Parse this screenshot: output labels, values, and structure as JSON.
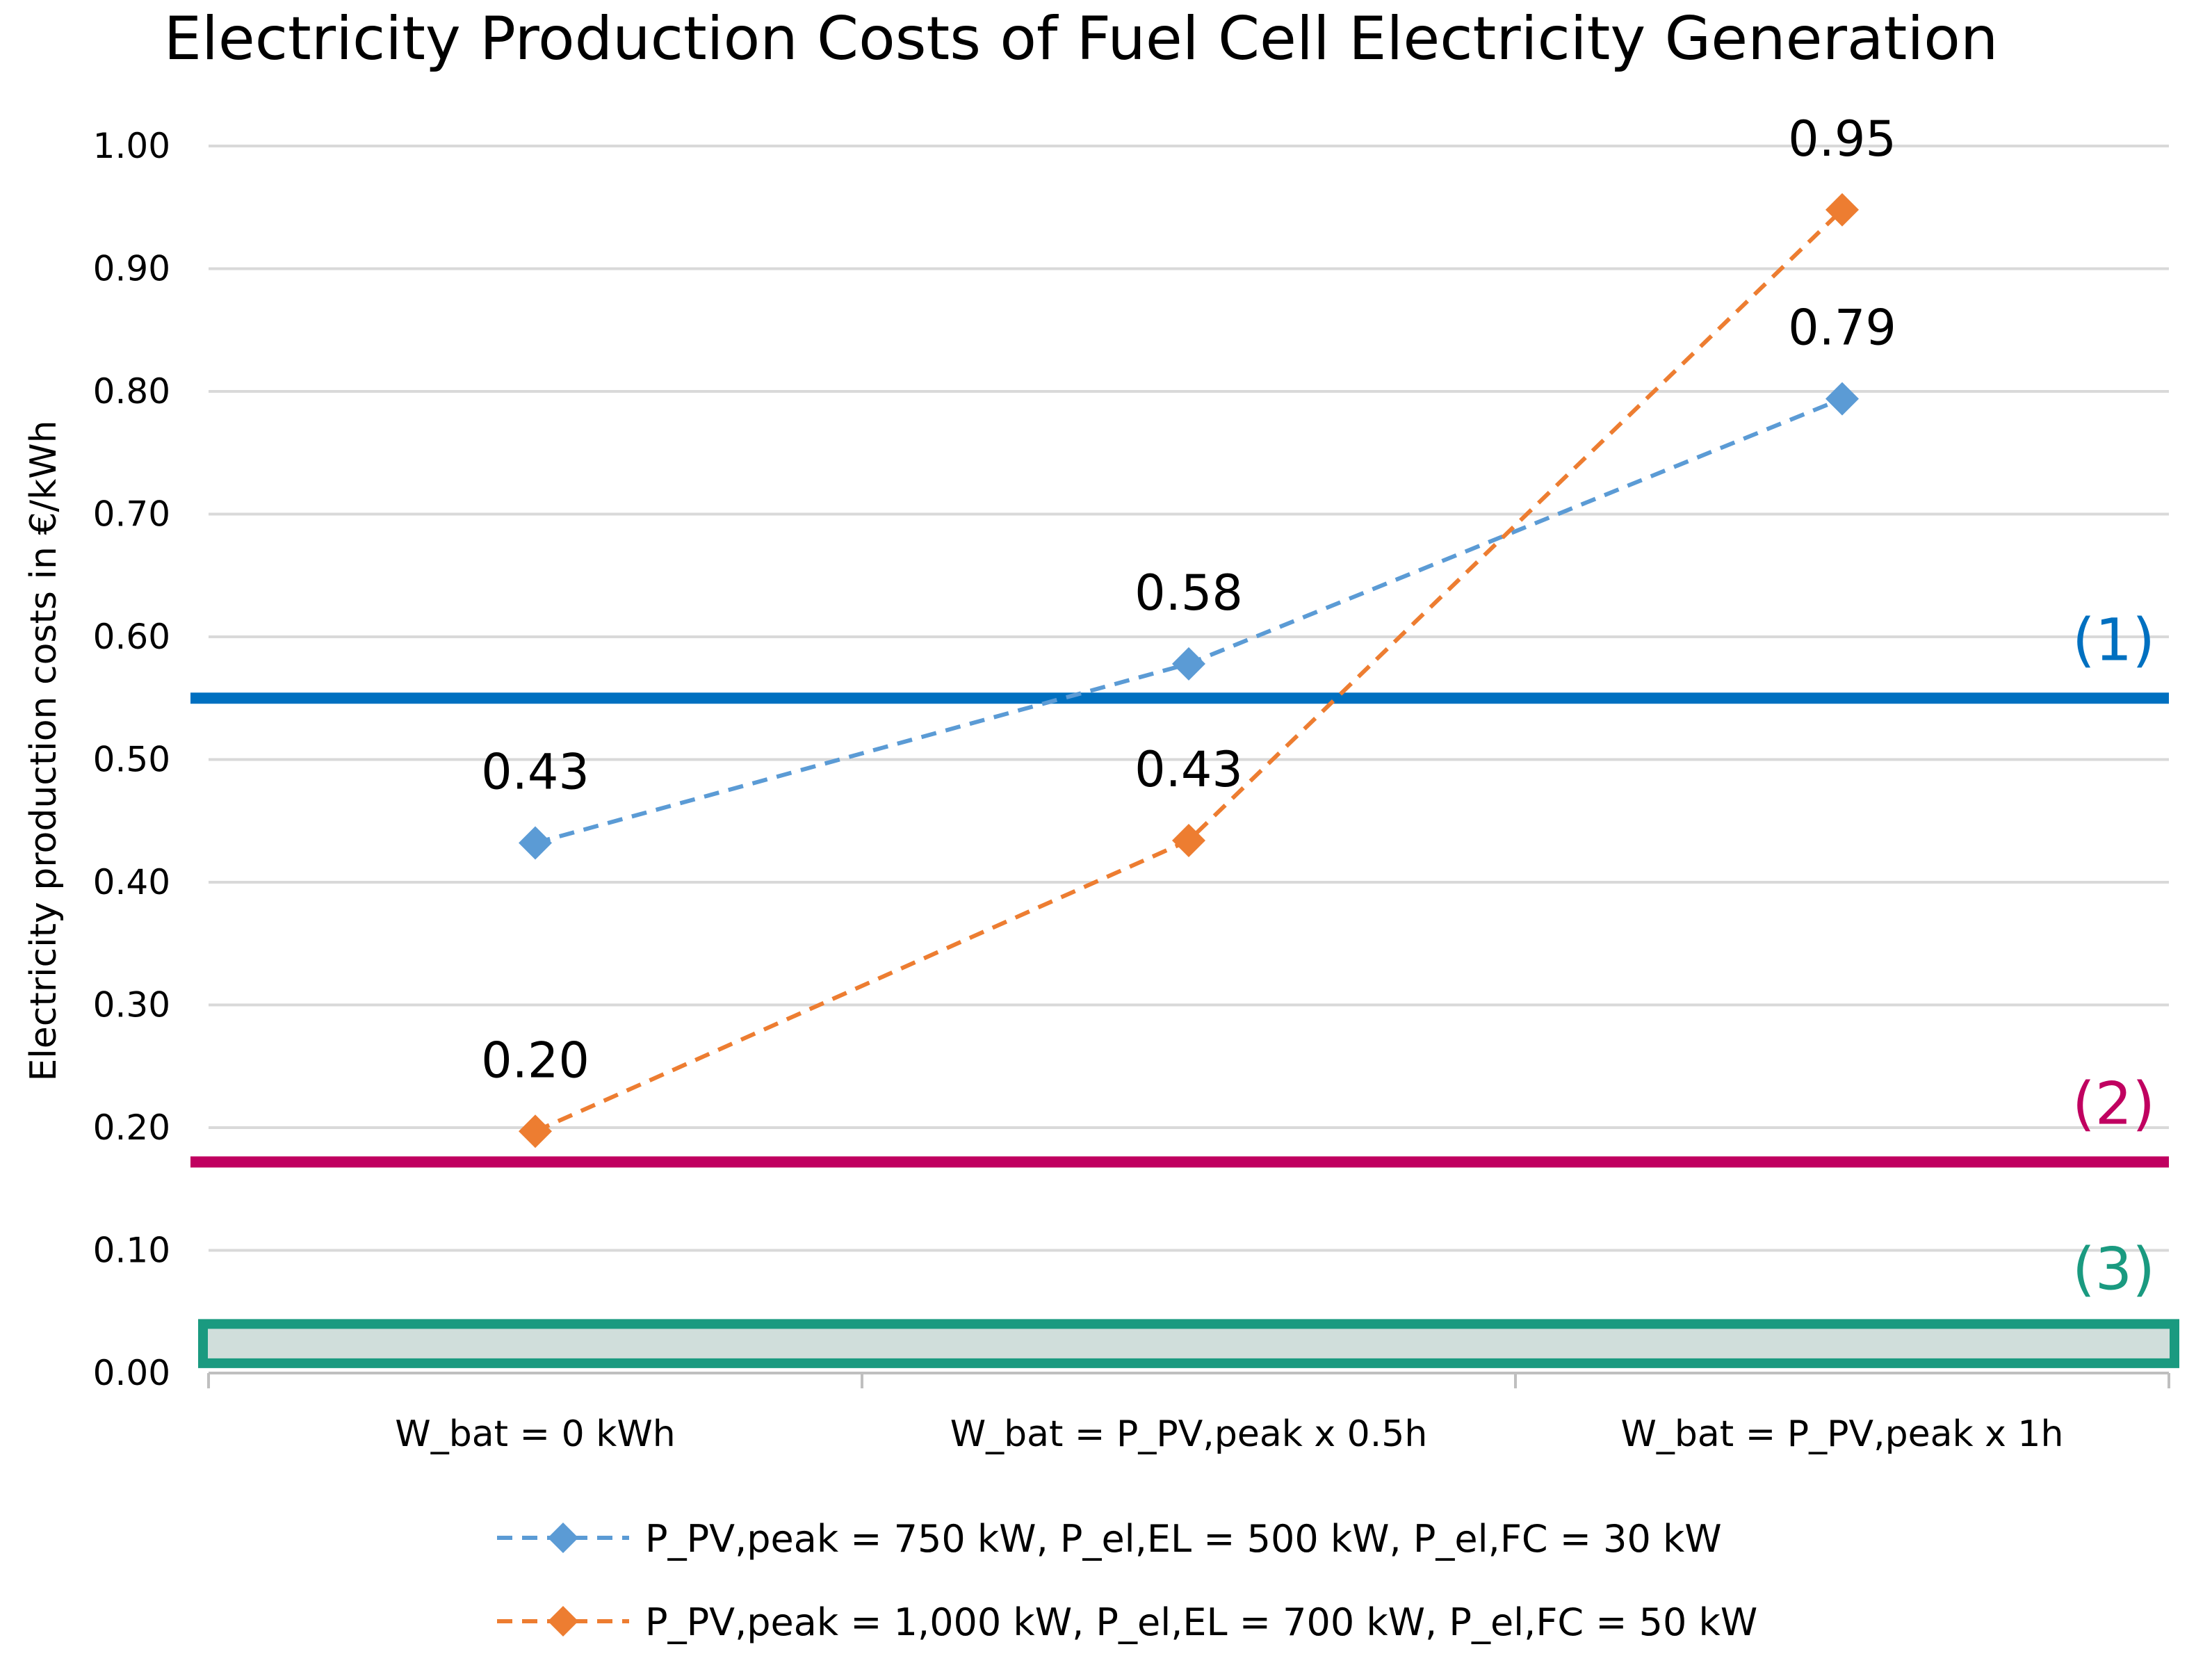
{
  "chart_data": {
    "type": "line",
    "title": "Electricity Production Costs of Fuel Cell Electricity Generation",
    "ylabel": "Electricity production costs in €/kWh",
    "xlabel": "",
    "ylim": [
      0,
      1.0
    ],
    "yticks": [
      "0.00",
      "0.10",
      "0.20",
      "0.30",
      "0.40",
      "0.50",
      "0.60",
      "0.70",
      "0.80",
      "0.90",
      "1.00"
    ],
    "grid": true,
    "categories": [
      "W_bat = 0 kWh",
      "W_bat = P_PV,peak x 0.5h",
      "W_bat = P_PV,peak x 1h"
    ],
    "series": [
      {
        "name": "P_PV,peak = 750 kW, P_el,EL = 500 kW, P_el,FC = 30 kW",
        "color": "#5B9BD5",
        "values": [
          0.432,
          0.578,
          0.794
        ],
        "labels": [
          "0.43",
          "0.58",
          "0.79"
        ]
      },
      {
        "name": "P_PV,peak = 1,000 kW, P_el,EL = 700 kW, P_el,FC = 50 kW",
        "color": "#ED7D31",
        "values": [
          0.197,
          0.434,
          0.948
        ],
        "labels": [
          "0.20",
          "0.43",
          "0.95"
        ]
      }
    ],
    "reference_lines": [
      {
        "label": "(1)",
        "value": 0.55,
        "color": "#0070C0"
      },
      {
        "label": "(2)",
        "value": 0.172,
        "color": "#C00060"
      }
    ],
    "reference_band": {
      "label": "(3)",
      "from": 0.008,
      "to": 0.04,
      "color": "#1A9A80",
      "fill": "#D0DEDB"
    },
    "legend_position": "bottom"
  }
}
